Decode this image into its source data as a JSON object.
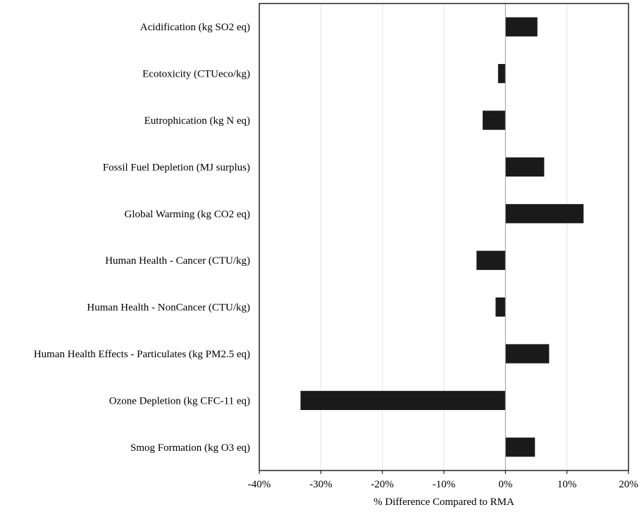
{
  "chart_data": {
    "type": "bar",
    "orientation": "horizontal",
    "title": "",
    "xlabel": "% Difference Compared to RMA",
    "ylabel": "",
    "xlim": [
      -40,
      20
    ],
    "x_ticks": [
      -40,
      -30,
      -20,
      -10,
      0,
      10,
      20
    ],
    "x_tick_labels": [
      "-40%",
      "-30%",
      "-20%",
      "-10%",
      "0%",
      "10%",
      "20%"
    ],
    "grid": "vertical",
    "legend": "none",
    "bar_color": "#1a1a1a",
    "categories": [
      "Acidification (kg SO2 eq)",
      "Ecotoxicity (CTUeco/kg)",
      "Eutrophication (kg N eq)",
      "Fossil Fuel Depletion (MJ surplus)",
      "Global Warming (kg CO2 eq)",
      "Human Health - Cancer (CTU/kg)",
      "Human Health - NonCancer (CTU/kg)",
      "Human Health Effects - Particulates (kg PM2.5 eq)",
      "Ozone Depletion (kg CFC-11 eq)",
      "Smog Formation (kg O3 eq)"
    ],
    "values": [
      5.2,
      -1.2,
      -3.7,
      6.3,
      12.7,
      -4.7,
      -1.6,
      7.1,
      -33.3,
      4.8
    ]
  }
}
